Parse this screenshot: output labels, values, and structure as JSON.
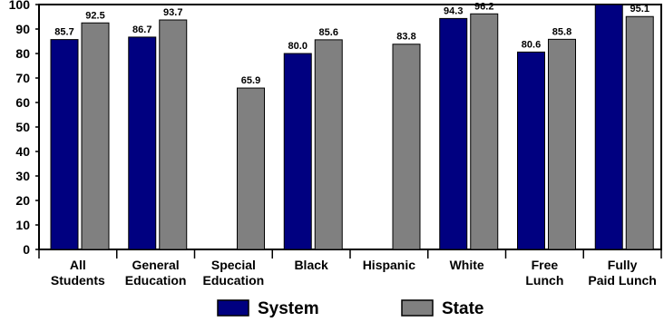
{
  "chart_data": {
    "type": "bar",
    "title": "",
    "xlabel": "",
    "ylabel": "",
    "ylim": [
      0,
      100
    ],
    "yticks": [
      0,
      10,
      20,
      30,
      40,
      50,
      60,
      70,
      80,
      90,
      100
    ],
    "grid": false,
    "legend_position": "bottom",
    "categories": [
      [
        "All",
        "Students"
      ],
      [
        "General",
        "Education"
      ],
      [
        "Special",
        "Education"
      ],
      [
        "Black"
      ],
      [
        "Hispanic"
      ],
      [
        "White"
      ],
      [
        "Free",
        "Lunch"
      ],
      [
        "Fully",
        "Paid Lunch"
      ]
    ],
    "series": [
      {
        "name": "System",
        "color": "#000080",
        "values": [
          85.7,
          86.7,
          null,
          80.0,
          null,
          94.3,
          80.6,
          100.0
        ],
        "labels": [
          "85.7",
          "86.7",
          null,
          "80.0",
          null,
          "94.3",
          "80.6",
          "100.0"
        ]
      },
      {
        "name": "State",
        "color": "#808080",
        "values": [
          92.5,
          93.7,
          65.9,
          85.6,
          83.8,
          96.2,
          85.8,
          95.1
        ],
        "labels": [
          "92.5",
          "93.7",
          "65.9",
          "85.6",
          "83.8",
          "96.2",
          "85.8",
          "95.1"
        ]
      }
    ]
  }
}
